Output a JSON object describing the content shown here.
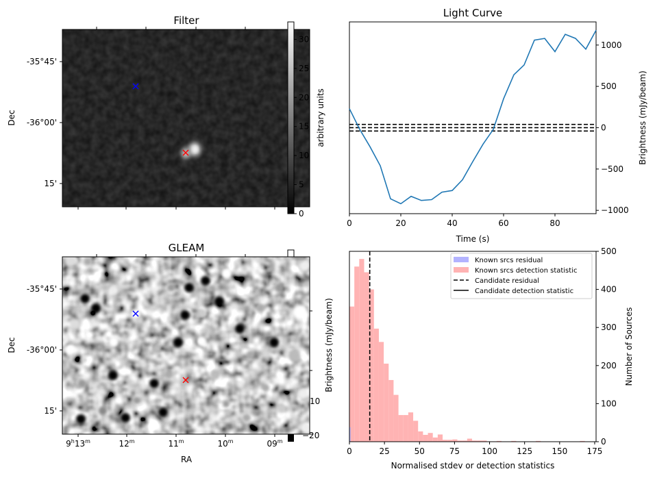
{
  "chart_data": [
    {
      "type": "heatmap",
      "panel": "filter",
      "title": "Filter",
      "xlabel": "",
      "ylabel": "Dec",
      "dec_ticks": [
        "-35°45'",
        "-36°00'",
        "15'"
      ],
      "colorbar": {
        "label": "arbitrary units",
        "range": [
          0,
          33
        ],
        "ticks": [
          "0",
          "5",
          "10",
          "15",
          "20",
          "25",
          "30"
        ]
      },
      "markers": [
        {
          "name": "reference",
          "color": "#0000ff",
          "symbol": "x"
        },
        {
          "name": "candidate",
          "color": "#ff0000",
          "symbol": "x"
        }
      ],
      "colormap": "gray"
    },
    {
      "type": "line",
      "panel": "light-curve",
      "title": "Light Curve",
      "xlabel": "Time (s)",
      "ylabel": "Brightness (mJy/beam)",
      "xlim": [
        0,
        96
      ],
      "ylim": [
        -1040,
        1280
      ],
      "xticks": [
        "0",
        "20",
        "40",
        "60",
        "80"
      ],
      "yticks": [
        "−1000",
        "−500",
        "0",
        "500",
        "1000"
      ],
      "ytick_values": [
        -1000,
        -500,
        0,
        500,
        1000
      ],
      "xtick_values": [
        0,
        20,
        40,
        60,
        80
      ],
      "series": [
        {
          "name": "light curve",
          "color": "#1f77b4",
          "x": [
            0,
            4,
            8,
            12,
            16,
            20,
            24,
            28,
            32,
            36,
            40,
            44,
            48,
            52,
            56,
            60,
            64,
            68,
            72,
            76,
            80,
            84,
            88,
            92,
            96
          ],
          "y": [
            230,
            -20,
            -230,
            -460,
            -860,
            -920,
            -830,
            -880,
            -870,
            -780,
            -760,
            -630,
            -410,
            -200,
            -20,
            350,
            640,
            760,
            1060,
            1080,
            920,
            1130,
            1080,
            950,
            1180
          ]
        }
      ],
      "hlines": [
        {
          "y": 40,
          "style": "dashed",
          "color": "#000000"
        },
        {
          "y": 0,
          "style": "dashed",
          "color": "#000000"
        },
        {
          "y": -40,
          "style": "dashed",
          "color": "#000000"
        }
      ]
    },
    {
      "type": "heatmap",
      "panel": "gleam",
      "title": "GLEAM",
      "xlabel": "RA",
      "ylabel": "Dec",
      "ra_ticks": [
        "9h13m",
        "12m",
        "11m",
        "10m",
        "09m"
      ],
      "ra_ticks_parts": [
        {
          "main": "9",
          "sup1": "h",
          "mid": "13",
          "sup2": "m"
        },
        {
          "main": "12",
          "sup1": "m",
          "mid": "",
          "sup2": ""
        },
        {
          "main": "11",
          "sup1": "m",
          "mid": "",
          "sup2": ""
        },
        {
          "main": "10",
          "sup1": "m",
          "mid": "",
          "sup2": ""
        },
        {
          "main": "09",
          "sup1": "m",
          "mid": "",
          "sup2": ""
        }
      ],
      "dec_ticks": [
        "-35°45'",
        "-36°00'",
        "15'"
      ],
      "colorbar": {
        "label": "Brightness (mJy/beam)",
        "visible_ticks": [
          "−20",
          "10"
        ]
      },
      "markers": [
        {
          "name": "reference",
          "color": "#0000ff",
          "symbol": "x"
        },
        {
          "name": "candidate",
          "color": "#ff0000",
          "symbol": "x"
        }
      ],
      "colormap": "gray"
    },
    {
      "type": "bar",
      "panel": "histogram",
      "title": "",
      "xlabel": "Normalised stdev or detection statistics",
      "ylabel": "Number of Sources",
      "xlim": [
        0,
        176
      ],
      "ylim": [
        0,
        500
      ],
      "xticks": [
        "0",
        "25",
        "50",
        "75",
        "100",
        "125",
        "150",
        "175"
      ],
      "xtick_values": [
        0,
        25,
        50,
        75,
        100,
        125,
        150,
        175
      ],
      "yticks": [
        "0",
        "100",
        "200",
        "300",
        "400",
        "500"
      ],
      "ytick_values": [
        0,
        100,
        200,
        300,
        400,
        500
      ],
      "bin_width": 3.5,
      "series": [
        {
          "name": "Known srcs residual",
          "color": "#b3b3ff",
          "bin_starts": [
            0
          ],
          "values": [
            38
          ]
        },
        {
          "name": "Known srcs detection statistic",
          "color": "#ffb3b3",
          "bin_starts": [
            0,
            3.5,
            7,
            10.5,
            14,
            17.5,
            21,
            24.5,
            28,
            31.5,
            35,
            38.5,
            42,
            45.5,
            49,
            52.5,
            56,
            59.5,
            63,
            66.5,
            70,
            73.5,
            77,
            80.5,
            84,
            87.5,
            91,
            94.5,
            98,
            101.5,
            105,
            115.5,
            133,
            164.5
          ],
          "values": [
            355,
            460,
            480,
            445,
            400,
            297,
            262,
            205,
            162,
            123,
            70,
            70,
            77,
            55,
            27,
            18,
            23,
            11,
            19,
            5,
            5,
            6,
            3,
            3,
            8,
            3,
            3,
            3,
            1,
            1,
            2,
            2,
            2,
            2
          ]
        }
      ],
      "vlines": [
        {
          "name": "Candidate residual",
          "x": 14.5,
          "style": "dashed",
          "color": "#000000"
        }
      ],
      "legend": {
        "placement": "top-right",
        "entries": [
          {
            "label": "Known srcs residual",
            "kind": "patch",
            "color": "#b3b3ff"
          },
          {
            "label": "Known srcs detection statistic",
            "kind": "patch",
            "color": "#ffb3b3"
          },
          {
            "label": "Candidate residual",
            "kind": "dashed",
            "color": "#000000"
          },
          {
            "label": "Candidate detection statistic",
            "kind": "solid",
            "color": "#000000"
          }
        ]
      }
    }
  ]
}
